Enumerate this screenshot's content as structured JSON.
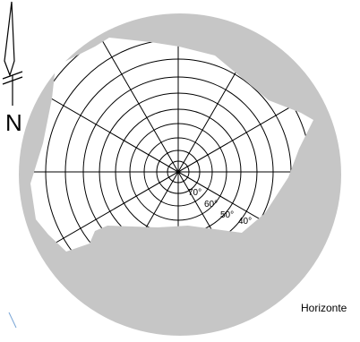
{
  "diagram": {
    "horizon_label": "Horizonte",
    "north_label": "N",
    "altitude_labels": [
      "70°",
      "60°",
      "50°",
      "40°"
    ],
    "colors": {
      "obstruction": "#c6c6c6",
      "sky": "#ffffff",
      "grid": "#000000",
      "north_arrow": "#000000",
      "stray_mark": "#7aa6d6"
    }
  }
}
